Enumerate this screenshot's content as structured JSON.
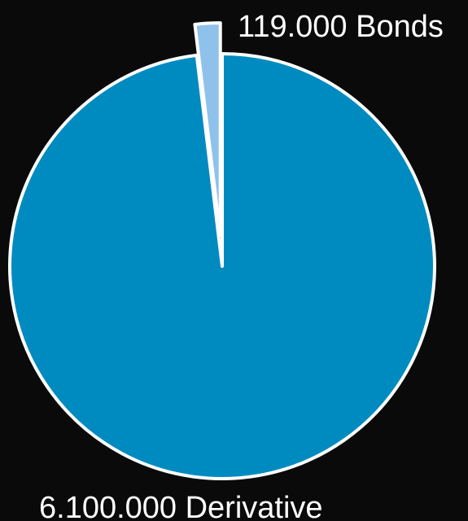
{
  "chart_data": {
    "type": "pie",
    "title": "",
    "slices": [
      {
        "label": "Bonds",
        "value": 119000,
        "display_value": "119.000",
        "color": "#8fc2ea",
        "exploded": true
      },
      {
        "label": "Derivative",
        "value": 6100000,
        "display_value": "6.100.000",
        "color": "#008bc0",
        "exploded": false
      }
    ],
    "labels": [
      "119.000 Bonds",
      "6.100.000 Derivative"
    ],
    "stroke_color": "#ffffff",
    "background": "#0a0a0a",
    "start_angle": "top, clockwise",
    "legend": "none"
  }
}
